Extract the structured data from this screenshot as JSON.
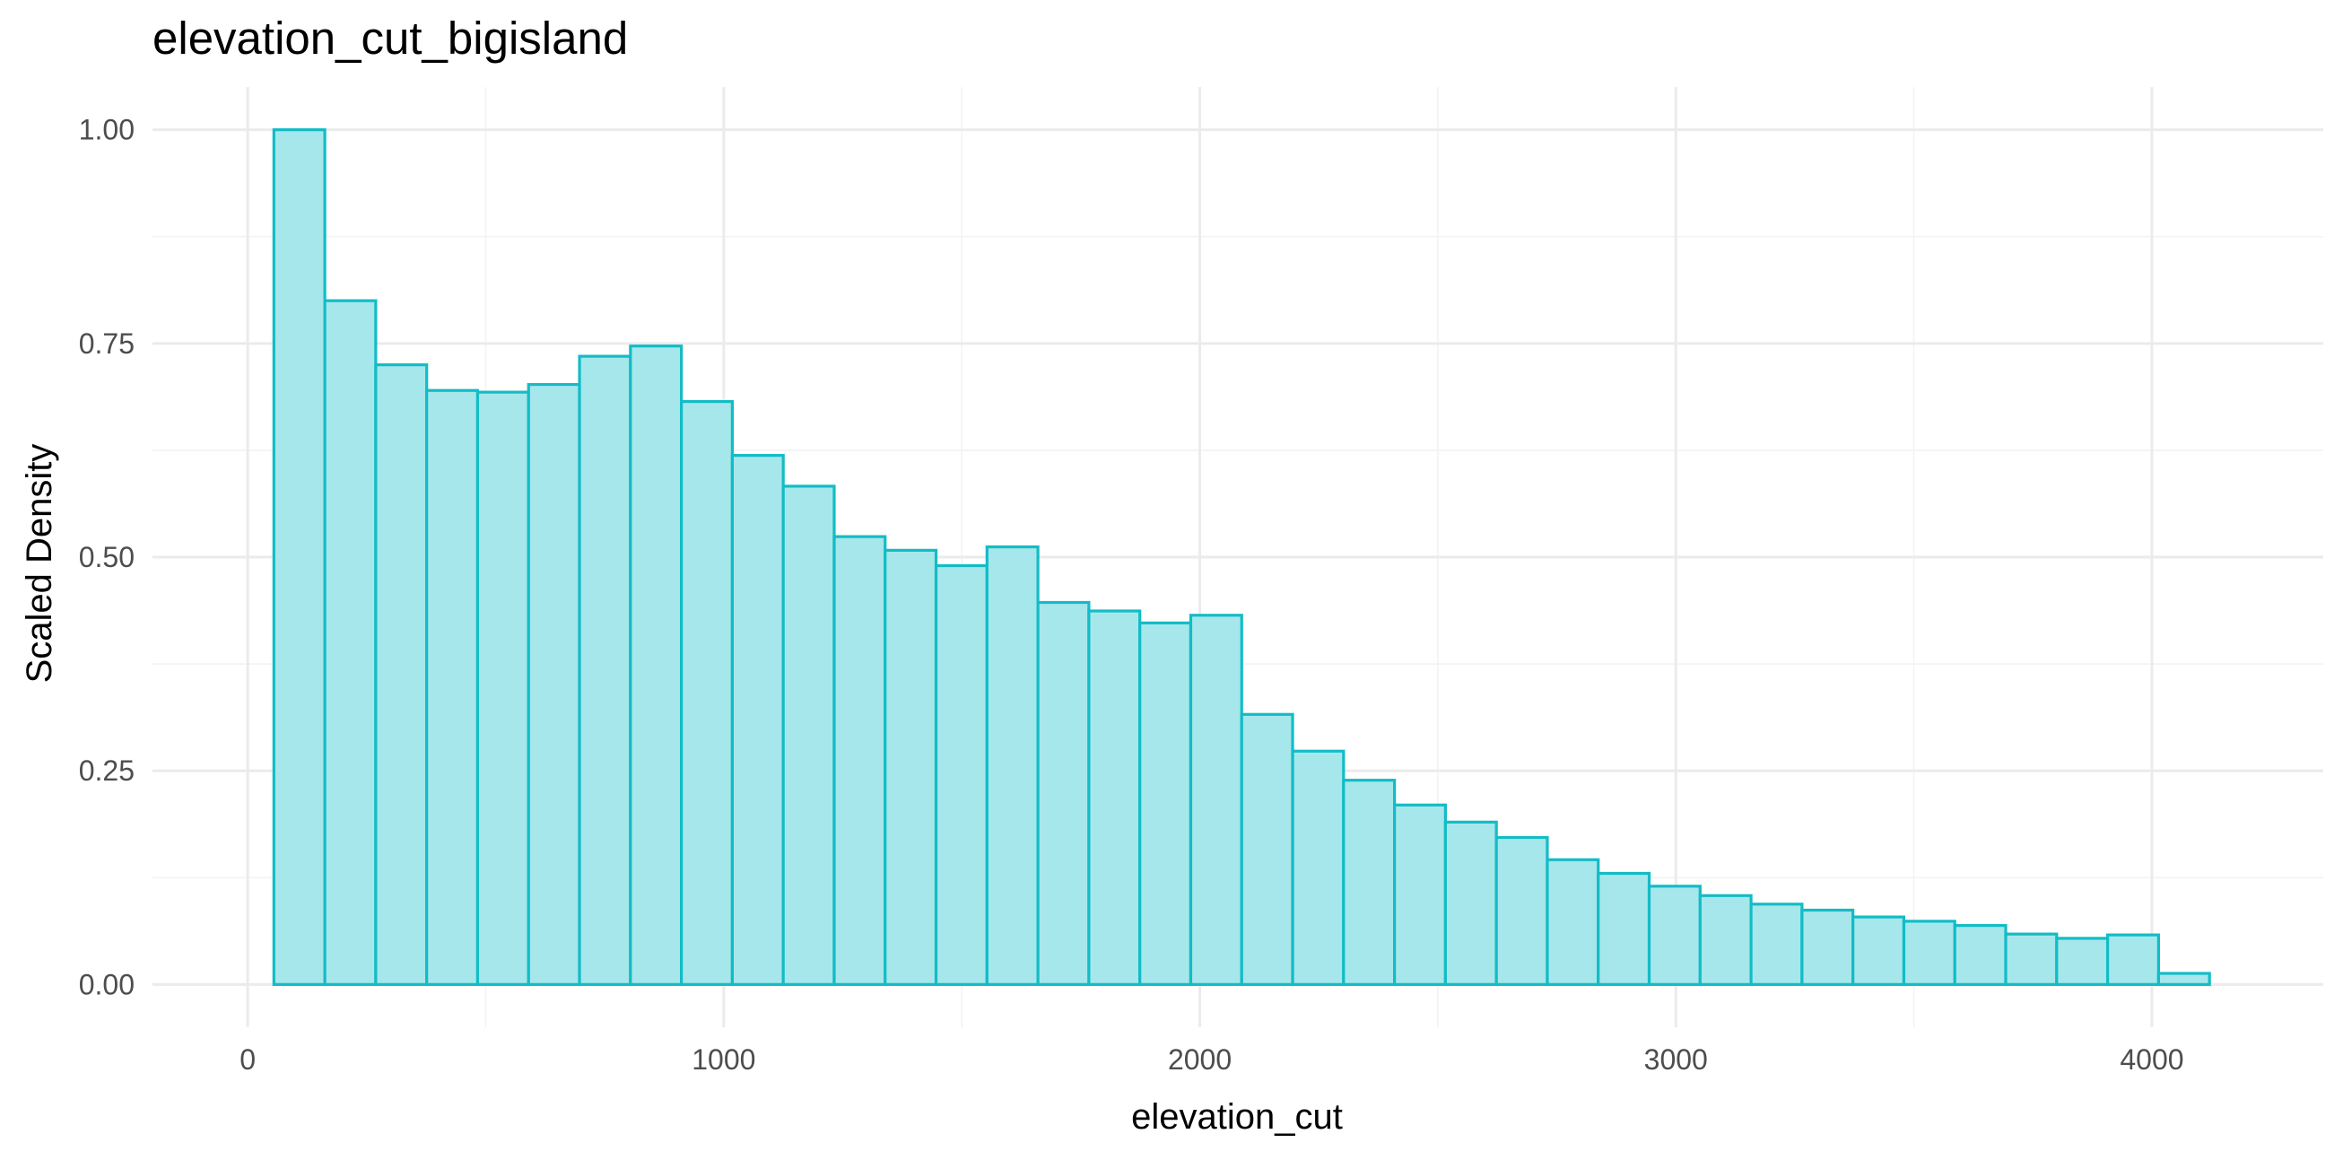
{
  "chart_data": {
    "type": "bar",
    "title": "elevation_cut_bigisland",
    "xlabel": "elevation_cut",
    "ylabel": "Scaled Density",
    "xlim": [
      -200,
      4360
    ],
    "ylim": [
      -0.05,
      1.05
    ],
    "xticks": [
      0,
      1000,
      2000,
      3000,
      4000
    ],
    "xtick_labels": [
      "0",
      "1000",
      "2000",
      "3000",
      "4000"
    ],
    "yticks": [
      0,
      0.25,
      0.5,
      0.75,
      1.0
    ],
    "ytick_labels": [
      "0.00",
      "0.25",
      "0.50",
      "0.75",
      "1.00"
    ],
    "grid": true,
    "colors": {
      "fill": "#a6e7eb",
      "outline": "#13bcc6",
      "grid": "#ebebeb"
    },
    "bins": [
      {
        "x0": 55,
        "x1": 162,
        "value": 1.0
      },
      {
        "x0": 162,
        "x1": 269,
        "value": 0.8
      },
      {
        "x0": 269,
        "x1": 376,
        "value": 0.725
      },
      {
        "x0": 376,
        "x1": 483,
        "value": 0.695
      },
      {
        "x0": 483,
        "x1": 590,
        "value": 0.693
      },
      {
        "x0": 590,
        "x1": 697,
        "value": 0.702
      },
      {
        "x0": 697,
        "x1": 804,
        "value": 0.735
      },
      {
        "x0": 804,
        "x1": 911,
        "value": 0.747
      },
      {
        "x0": 911,
        "x1": 1018,
        "value": 0.682
      },
      {
        "x0": 1018,
        "x1": 1125,
        "value": 0.619
      },
      {
        "x0": 1125,
        "x1": 1232,
        "value": 0.583
      },
      {
        "x0": 1232,
        "x1": 1339,
        "value": 0.524
      },
      {
        "x0": 1339,
        "x1": 1446,
        "value": 0.508
      },
      {
        "x0": 1446,
        "x1": 1553,
        "value": 0.49
      },
      {
        "x0": 1553,
        "x1": 1660,
        "value": 0.512
      },
      {
        "x0": 1660,
        "x1": 1767,
        "value": 0.447
      },
      {
        "x0": 1767,
        "x1": 1874,
        "value": 0.437
      },
      {
        "x0": 1874,
        "x1": 1981,
        "value": 0.423
      },
      {
        "x0": 1981,
        "x1": 2088,
        "value": 0.432
      },
      {
        "x0": 2088,
        "x1": 2195,
        "value": 0.316
      },
      {
        "x0": 2195,
        "x1": 2302,
        "value": 0.273
      },
      {
        "x0": 2302,
        "x1": 2409,
        "value": 0.239
      },
      {
        "x0": 2409,
        "x1": 2516,
        "value": 0.21
      },
      {
        "x0": 2516,
        "x1": 2623,
        "value": 0.19
      },
      {
        "x0": 2623,
        "x1": 2730,
        "value": 0.172
      },
      {
        "x0": 2730,
        "x1": 2837,
        "value": 0.146
      },
      {
        "x0": 2837,
        "x1": 2944,
        "value": 0.13
      },
      {
        "x0": 2944,
        "x1": 3051,
        "value": 0.115
      },
      {
        "x0": 3051,
        "x1": 3158,
        "value": 0.104
      },
      {
        "x0": 3158,
        "x1": 3265,
        "value": 0.094
      },
      {
        "x0": 3265,
        "x1": 3372,
        "value": 0.087
      },
      {
        "x0": 3372,
        "x1": 3479,
        "value": 0.079
      },
      {
        "x0": 3479,
        "x1": 3586,
        "value": 0.074
      },
      {
        "x0": 3586,
        "x1": 3693,
        "value": 0.069
      },
      {
        "x0": 3693,
        "x1": 3800,
        "value": 0.059
      },
      {
        "x0": 3800,
        "x1": 3907,
        "value": 0.054
      },
      {
        "x0": 3907,
        "x1": 4014,
        "value": 0.058
      },
      {
        "x0": 4014,
        "x1": 4121,
        "value": 0.013
      }
    ]
  }
}
